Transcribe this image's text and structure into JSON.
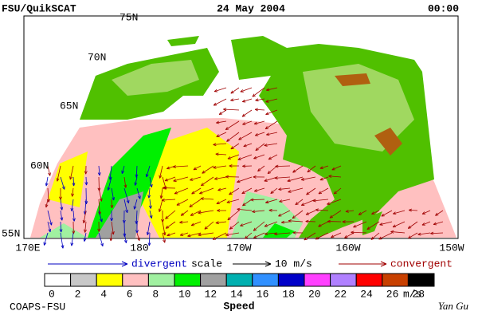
{
  "header": {
    "title": "FSU/QuikSCAT",
    "date": "24 May 2004",
    "time": "00:00"
  },
  "map": {
    "lat_labels": [
      "75N",
      "70N",
      "65N",
      "60N",
      "55N"
    ],
    "lon_labels": [
      "170E",
      "180",
      "170W",
      "160W",
      "150W"
    ]
  },
  "legend": {
    "divergent": "divergent",
    "scale": "scale",
    "scale_value": "10 m/s",
    "convergent": "convergent"
  },
  "colorbar": {
    "colors": [
      "#ffffff",
      "#c8c8c8",
      "#ffff00",
      "#ffc0c0",
      "#a0f0a0",
      "#00f000",
      "#a0a0a0",
      "#00b0b0",
      "#3090ff",
      "#0000c8",
      "#ff40ff",
      "#b080ff",
      "#ff0000",
      "#c84000",
      "#000000"
    ],
    "labels": [
      0,
      2,
      4,
      6,
      8,
      10,
      12,
      14,
      16,
      18,
      20,
      22,
      24,
      26,
      28
    ],
    "unit": "m/s",
    "title": "Speed"
  },
  "footer": {
    "left": "COAPS-FSU",
    "right": "Yan Gu"
  }
}
